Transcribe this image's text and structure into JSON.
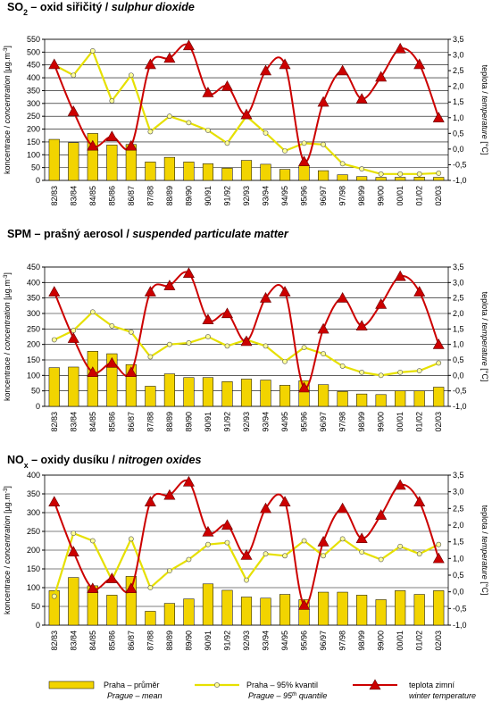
{
  "chart_data": [
    {
      "type": "combo",
      "title": "SO",
      "title_sub": "2",
      "title_cz": " – oxid siřičitý / ",
      "title_en": "sulphur dioxide",
      "ylabel": "koncentrace / ",
      "ylabel_en": "concentration",
      "ylabel_unit": " [µg.m",
      "ylabel_sup": "-3",
      "ylabel_end": "]",
      "y2label": "teplota / ",
      "y2label_en": "temperature",
      "y2label_unit": " [°C]",
      "categories": [
        "82/83",
        "83/84",
        "84/85",
        "85/86",
        "86/87",
        "87/88",
        "88/89",
        "89/90",
        "90/91",
        "91/92",
        "92/93",
        "93/94",
        "94/95",
        "95/96",
        "96/97",
        "97/98",
        "98/99",
        "99/00",
        "00/01",
        "01/02",
        "02/03"
      ],
      "ylim": [
        0,
        550
      ],
      "yticks": [
        0,
        50,
        100,
        150,
        200,
        250,
        300,
        350,
        400,
        450,
        500,
        550
      ],
      "y2lim": [
        -1,
        3.5
      ],
      "y2ticks": [
        {
          "value": -1,
          "label": "-1,0"
        },
        {
          "value": -0.5,
          "label": "-0,5"
        },
        {
          "value": 0,
          "label": "0,0"
        },
        {
          "value": 0.5,
          "label": "0,5"
        },
        {
          "value": 1,
          "label": "1,0"
        },
        {
          "value": 1.5,
          "label": "1,5"
        },
        {
          "value": 2,
          "label": "2,0"
        },
        {
          "value": 2.5,
          "label": "2,5"
        },
        {
          "value": 3,
          "label": "3,0"
        },
        {
          "value": 3.5,
          "label": "3,5"
        }
      ],
      "grid": true,
      "series": [
        {
          "name": "Praha – průměr",
          "name_en": "Prague – mean",
          "kind": "bar",
          "color": "#f2d400",
          "values": [
            160,
            147,
            183,
            138,
            140,
            72,
            90,
            72,
            65,
            48,
            78,
            63,
            43,
            57,
            38,
            22,
            15,
            12,
            12,
            13,
            12
          ]
        },
        {
          "name": "Praha – 95% kvantil",
          "name_en": "Prague – 95",
          "name_en_sup": "th",
          "name_en_rest": " quantile",
          "kind": "line",
          "color": "#e6e000",
          "values": [
            450,
            410,
            505,
            310,
            410,
            190,
            250,
            225,
            195,
            145,
            250,
            185,
            115,
            145,
            140,
            65,
            45,
            25,
            25,
            25,
            28
          ]
        },
        {
          "name": "teplota zimní",
          "name_en": "winter temperature",
          "kind": "temp",
          "axis": "y2",
          "color": "#cc0000",
          "values": [
            2.7,
            1.2,
            0.1,
            0.4,
            0.1,
            2.7,
            2.9,
            3.3,
            1.8,
            2.0,
            1.1,
            2.5,
            2.7,
            -0.4,
            1.5,
            2.5,
            1.6,
            2.3,
            3.2,
            2.7,
            1.0
          ]
        }
      ]
    },
    {
      "type": "combo",
      "title": "SPM – prašný aerosol / ",
      "title_en": "suspended particulate matter",
      "ylabel": "koncentrace / ",
      "ylabel_en": "concentration",
      "ylabel_unit": " [µg.m",
      "ylabel_sup": "-3",
      "ylabel_end": "]",
      "y2label": "teplota / ",
      "y2label_en": "temperature",
      "y2label_unit": " [°C]",
      "categories": [
        "82/83",
        "83/84",
        "84/85",
        "85/86",
        "86/87",
        "87/88",
        "88/89",
        "89/90",
        "90/91",
        "91/92",
        "92/93",
        "93/94",
        "94/95",
        "95/96",
        "96/97",
        "97/98",
        "98/99",
        "99/00",
        "00/01",
        "01/02",
        "02/03"
      ],
      "ylim": [
        0,
        450
      ],
      "yticks": [
        0,
        50,
        100,
        150,
        200,
        250,
        300,
        350,
        400,
        450
      ],
      "y2lim": [
        -1,
        3.5
      ],
      "y2ticks": [
        {
          "value": -1,
          "label": "-1,0"
        },
        {
          "value": -0.5,
          "label": "-0,5"
        },
        {
          "value": 0,
          "label": "0,0"
        },
        {
          "value": 0.5,
          "label": "0,5"
        },
        {
          "value": 1,
          "label": "1,0"
        },
        {
          "value": 1.5,
          "label": "1,5"
        },
        {
          "value": 2,
          "label": "2,0"
        },
        {
          "value": 2.5,
          "label": "2,5"
        },
        {
          "value": 3,
          "label": "3,0"
        },
        {
          "value": 3.5,
          "label": "3,5"
        }
      ],
      "grid": true,
      "series": [
        {
          "name": "Praha – průměr",
          "kind": "bar",
          "color": "#f2d400",
          "values": [
            125,
            127,
            178,
            170,
            135,
            65,
            105,
            93,
            93,
            80,
            88,
            85,
            68,
            83,
            70,
            48,
            40,
            38,
            50,
            50,
            62
          ]
        },
        {
          "name": "Praha – 95% kvantil",
          "kind": "line",
          "color": "#e6e000",
          "values": [
            215,
            245,
            305,
            260,
            240,
            160,
            200,
            205,
            225,
            195,
            215,
            195,
            145,
            190,
            170,
            130,
            110,
            100,
            110,
            115,
            140
          ]
        },
        {
          "name": "teplota zimní",
          "kind": "temp",
          "axis": "y2",
          "color": "#cc0000",
          "values": [
            2.7,
            1.2,
            0.1,
            0.4,
            0.1,
            2.7,
            2.9,
            3.3,
            1.8,
            2.0,
            1.1,
            2.5,
            2.7,
            -0.4,
            1.5,
            2.5,
            1.6,
            2.3,
            3.2,
            2.7,
            1.0
          ]
        }
      ]
    },
    {
      "type": "combo",
      "title": "NO",
      "title_sub": "x",
      "title_cz": " – oxidy dusíku / ",
      "title_en": "nitrogen oxides",
      "ylabel": "koncentrace / ",
      "ylabel_en": "concentration",
      "ylabel_unit": " [µg.m",
      "ylabel_sup": "-3",
      "ylabel_end": "]",
      "y2label": "teplota / ",
      "y2label_en": "temperature",
      "y2label_unit": " [°C]",
      "categories": [
        "82/83",
        "83/84",
        "84/85",
        "85/86",
        "86/87",
        "87/88",
        "88/89",
        "89/90",
        "90/91",
        "91/92",
        "92/93",
        "93/94",
        "94/95",
        "95/96",
        "96/97",
        "97/98",
        "98/99",
        "99/00",
        "00/01",
        "01/02",
        "02/03"
      ],
      "ylim": [
        0,
        400
      ],
      "yticks": [
        0,
        50,
        100,
        150,
        200,
        250,
        300,
        350,
        400
      ],
      "y2lim": [
        -1,
        3.5
      ],
      "y2ticks": [
        {
          "value": -1,
          "label": "-1,0"
        },
        {
          "value": -0.5,
          "label": "-0,5"
        },
        {
          "value": 0,
          "label": "0,0"
        },
        {
          "value": 0.5,
          "label": "0,5"
        },
        {
          "value": 1,
          "label": "1,0"
        },
        {
          "value": 1.5,
          "label": "1,5"
        },
        {
          "value": 2,
          "label": "2,0"
        },
        {
          "value": 2.5,
          "label": "2,5"
        },
        {
          "value": 3,
          "label": "3,0"
        },
        {
          "value": 3.5,
          "label": "3,5"
        }
      ],
      "grid": true,
      "series": [
        {
          "name": "Praha – průměr",
          "kind": "bar",
          "color": "#f2d400",
          "values": [
            92,
            127,
            105,
            80,
            130,
            37,
            58,
            70,
            110,
            93,
            75,
            72,
            82,
            68,
            88,
            88,
            80,
            68,
            92,
            82,
            92
          ]
        },
        {
          "name": "Praha – 95% kvantil",
          "kind": "line",
          "color": "#e6e000",
          "values": [
            77,
            245,
            225,
            120,
            230,
            100,
            145,
            175,
            215,
            220,
            120,
            190,
            185,
            225,
            185,
            230,
            195,
            175,
            210,
            190,
            215
          ]
        },
        {
          "name": "teplota zimní",
          "kind": "temp",
          "axis": "y2",
          "color": "#cc0000",
          "values": [
            2.7,
            1.2,
            0.1,
            0.4,
            0.1,
            2.7,
            2.9,
            3.3,
            1.8,
            2.0,
            1.1,
            2.5,
            2.7,
            -0.4,
            1.5,
            2.5,
            1.6,
            2.3,
            3.2,
            2.7,
            1.0
          ]
        }
      ]
    }
  ]
}
